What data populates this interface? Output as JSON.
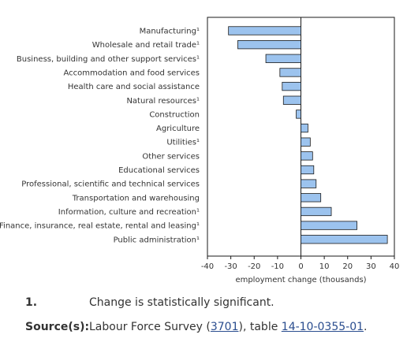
{
  "chart_data": {
    "type": "bar",
    "orientation": "horizontal",
    "categories": [
      "Manufacturing¹",
      "Wholesale and retail trade¹",
      "Business, building and other support services¹",
      "Accommodation and food services",
      "Health care and social assistance",
      "Natural resources¹",
      "Construction",
      "Agriculture",
      "Utilities¹",
      "Other services",
      "Educational services",
      "Professional, scientific and technical services",
      "Transportation and warehousing",
      "Information, culture and recreation¹",
      "Finance, insurance, real estate, rental and leasing¹",
      "Public administration¹"
    ],
    "values": [
      -31,
      -27,
      -15,
      -9,
      -8,
      -7.5,
      -2,
      3,
      4,
      5,
      5.5,
      6.5,
      8.5,
      13,
      24,
      37
    ],
    "xlabel": "employment change (thousands)",
    "ylabel": "",
    "xlim": [
      -40,
      40
    ],
    "ticks": [
      -40,
      -30,
      -20,
      -10,
      0,
      10,
      20,
      30,
      40
    ],
    "tick_labels": [
      "-40",
      "-30",
      "-20",
      "-10",
      "0",
      "10",
      "20",
      "30",
      "40"
    ],
    "grid": false,
    "colors": {
      "bar_fill": "#9cc3ee",
      "bar_stroke": "#1a1a1a"
    }
  },
  "notes": {
    "footnote_number": "1.",
    "footnote_text": "Change is statistically significant.",
    "source_label": "Source(s):",
    "source_prefix": "Labour Force Survey (",
    "source_link1": "3701",
    "source_middle": "), table ",
    "source_link2": "14-10-0355-01",
    "source_suffix": "."
  }
}
